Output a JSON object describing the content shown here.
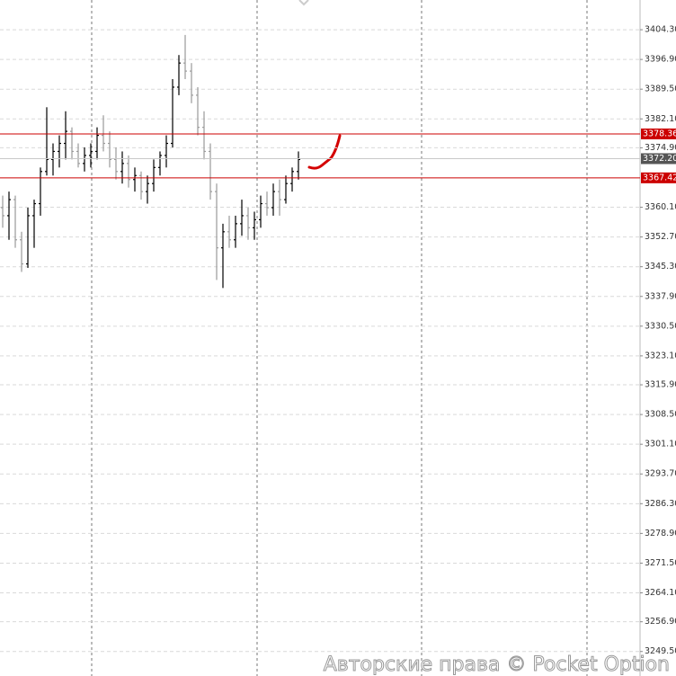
{
  "chart_data": {
    "type": "ohlc",
    "categories": [
      null,
      null,
      null,
      null,
      null,
      null,
      null,
      null,
      null,
      null,
      null,
      null,
      null,
      null,
      null,
      null,
      null,
      null,
      null,
      null,
      null,
      null,
      null,
      null,
      null,
      null,
      null,
      null,
      null,
      null,
      null,
      null,
      null,
      null,
      null,
      null,
      null,
      null,
      null,
      null,
      null,
      null,
      null,
      null,
      null,
      null,
      null,
      null
    ],
    "open": [
      3360,
      3358,
      3362,
      3352,
      3346,
      3358,
      3361,
      3369,
      3372,
      3374,
      3376,
      3379,
      3374,
      3371,
      3373,
      3374,
      3378,
      3376,
      3372,
      3369,
      3371,
      3367,
      3368,
      3364,
      3366,
      3370,
      3373,
      3376,
      3390,
      3396,
      3394,
      3388,
      3380,
      3374,
      3364,
      3350,
      3354,
      3352,
      3356,
      3358,
      3355,
      3357,
      3361,
      3360,
      3364,
      3362,
      3366,
      3369
    ],
    "high": [
      3363,
      3364,
      3363,
      3354,
      3360,
      3362,
      3370,
      3385,
      3376,
      3378,
      3384,
      3380,
      3376,
      3375,
      3376,
      3380,
      3383,
      3379,
      3375,
      3374,
      3373,
      3370,
      3369,
      3368,
      3372,
      3374,
      3378,
      3392,
      3398,
      3403,
      3396,
      3390,
      3384,
      3376,
      3366,
      3356,
      3358,
      3358,
      3362,
      3360,
      3359,
      3363,
      3364,
      3366,
      3367,
      3368,
      3370,
      3374
    ],
    "low": [
      3355,
      3352,
      3350,
      3344,
      3345,
      3350,
      3358,
      3368,
      3368,
      3370,
      3372,
      3372,
      3370,
      3369,
      3370,
      3372,
      3374,
      3370,
      3367,
      3366,
      3365,
      3364,
      3362,
      3361,
      3364,
      3368,
      3370,
      3375,
      3388,
      3392,
      3386,
      3378,
      3372,
      3362,
      3342,
      3340,
      3350,
      3350,
      3353,
      3352,
      3352,
      3355,
      3358,
      3358,
      3358,
      3361,
      3364,
      3367
    ],
    "close": [
      3358,
      3362,
      3352,
      3346,
      3358,
      3361,
      3369,
      3372,
      3374,
      3376,
      3379,
      3374,
      3371,
      3373,
      3374,
      3378,
      3376,
      3372,
      3369,
      3371,
      3367,
      3368,
      3364,
      3366,
      3370,
      3373,
      3376,
      3390,
      3396,
      3394,
      3388,
      3380,
      3374,
      3364,
      3350,
      3354,
      3352,
      3356,
      3358,
      3355,
      3357,
      3361,
      3360,
      3364,
      3362,
      3366,
      3369,
      3372
    ],
    "up_color": "#000000",
    "down_color": "#9a9a9a",
    "ylim": [
      3243.4,
      3411.7
    ],
    "yticks": [
      {
        "value": 3404.3,
        "label": "3404.30"
      },
      {
        "value": 3396.9,
        "label": "3396.90"
      },
      {
        "value": 3389.5,
        "label": "3389.50"
      },
      {
        "value": 3382.1,
        "label": "3382.10"
      },
      {
        "value": 3374.9,
        "label": "3374.90"
      },
      {
        "value": 3360.1,
        "label": "3360.10"
      },
      {
        "value": 3352.7,
        "label": "3352.70"
      },
      {
        "value": 3345.3,
        "label": "3345.30"
      },
      {
        "value": 3337.9,
        "label": "3337.90"
      },
      {
        "value": 3330.5,
        "label": "3330.50"
      },
      {
        "value": 3323.1,
        "label": "3323.10"
      },
      {
        "value": 3315.9,
        "label": "3315.90"
      },
      {
        "value": 3308.5,
        "label": "3308.50"
      },
      {
        "value": 3301.1,
        "label": "3301.10"
      },
      {
        "value": 3293.7,
        "label": "3293.70"
      },
      {
        "value": 3286.3,
        "label": "3286.30"
      },
      {
        "value": 3278.9,
        "label": "3278.90"
      },
      {
        "value": 3271.5,
        "label": "3271.50"
      },
      {
        "value": 3264.1,
        "label": "3264.10"
      },
      {
        "value": 3256.9,
        "label": "3256.90"
      },
      {
        "value": 3249.5,
        "label": "3249.50"
      }
    ],
    "grid": true,
    "hlines": [
      {
        "value": 3378.36,
        "color": "#cc0000"
      },
      {
        "value": 3367.42,
        "color": "#cc0000"
      }
    ],
    "last_price": {
      "value": 3372.2,
      "label": "3372.20",
      "color": "#555555"
    },
    "watermark": "Авторские права © Pocket Option"
  }
}
